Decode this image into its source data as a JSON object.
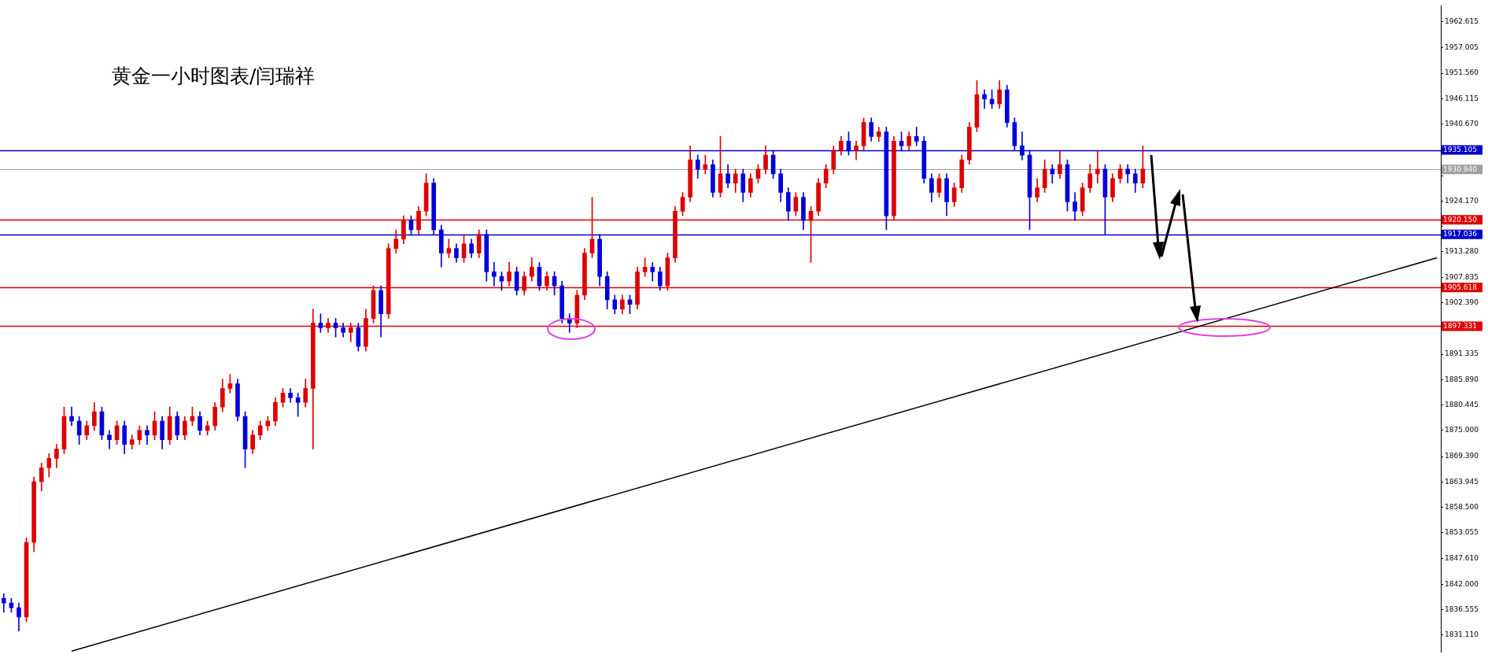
{
  "chart_data": {
    "type": "candlestick",
    "title": "黄金一小时图表/闫瑞祥",
    "categories": [
      null,
      null,
      null,
      null,
      null,
      null,
      null,
      null,
      null,
      null,
      null,
      null,
      null,
      null,
      null,
      null,
      null,
      null,
      null,
      null,
      null,
      null,
      null,
      null,
      null,
      null,
      null,
      null,
      null,
      null,
      null,
      null,
      null,
      null,
      null,
      null,
      null,
      null,
      null,
      null,
      null,
      null,
      null,
      null,
      null,
      null,
      null,
      null,
      null,
      null,
      null,
      null,
      null,
      null,
      null,
      null,
      null,
      null,
      null,
      null,
      null,
      null,
      null,
      null,
      null,
      null,
      null,
      null,
      null,
      null,
      null,
      null,
      null,
      null,
      null,
      null,
      null,
      null,
      null,
      null,
      null,
      null,
      null,
      null,
      null,
      null,
      null,
      null,
      null,
      null,
      null,
      null,
      null,
      null,
      null,
      null,
      null,
      null,
      null,
      null,
      null,
      null,
      null,
      null,
      null,
      null,
      null,
      null,
      null,
      null,
      null,
      null,
      null,
      null,
      null,
      null,
      null,
      null,
      null,
      null,
      null,
      null,
      null,
      null,
      null,
      null,
      null,
      null,
      null,
      null,
      null,
      null,
      null,
      null,
      null,
      null,
      null,
      null,
      null,
      null,
      null,
      null,
      null,
      null,
      null,
      null,
      null,
      null,
      null,
      null,
      null,
      null,
      null,
      null,
      null,
      null,
      null,
      null,
      null,
      null,
      null,
      null,
      null,
      null,
      null,
      null,
      null,
      null,
      null,
      null,
      null,
      null,
      null,
      null,
      null,
      null,
      null,
      null,
      null,
      null,
      null,
      null,
      null,
      null,
      null,
      null,
      null,
      null,
      null,
      null,
      null
    ],
    "ohlc": [
      [
        1839,
        1840,
        1836,
        1838
      ],
      [
        1838,
        1839,
        1836,
        1837
      ],
      [
        1837,
        1838,
        1832,
        1835
      ],
      [
        1835,
        1852,
        1834,
        1851
      ],
      [
        1851,
        1865,
        1849,
        1864
      ],
      [
        1864,
        1868,
        1862,
        1867
      ],
      [
        1867,
        1870,
        1865,
        1869
      ],
      [
        1869,
        1872,
        1867,
        1871
      ],
      [
        1871,
        1880,
        1870,
        1878
      ],
      [
        1878,
        1880,
        1876,
        1877
      ],
      [
        1877,
        1878,
        1872,
        1874
      ],
      [
        1874,
        1877,
        1873,
        1876
      ],
      [
        1876,
        1881,
        1875,
        1879
      ],
      [
        1879,
        1880,
        1873,
        1874
      ],
      [
        1874,
        1875,
        1871,
        1873
      ],
      [
        1873,
        1877,
        1872,
        1876
      ],
      [
        1876,
        1877,
        1870,
        1872
      ],
      [
        1872,
        1874,
        1871,
        1873
      ],
      [
        1873,
        1876,
        1872,
        1875
      ],
      [
        1875,
        1876,
        1872,
        1874
      ],
      [
        1874,
        1879,
        1873,
        1877
      ],
      [
        1877,
        1878,
        1871,
        1873
      ],
      [
        1873,
        1880,
        1872,
        1878
      ],
      [
        1878,
        1879,
        1873,
        1874
      ],
      [
        1874,
        1878,
        1873,
        1877
      ],
      [
        1877,
        1880,
        1876,
        1878
      ],
      [
        1878,
        1879,
        1874,
        1875
      ],
      [
        1875,
        1877,
        1874,
        1876
      ],
      [
        1876,
        1881,
        1875,
        1880
      ],
      [
        1880,
        1886,
        1879,
        1884
      ],
      [
        1884,
        1887,
        1883,
        1885
      ],
      [
        1885,
        1886,
        1877,
        1878
      ],
      [
        1878,
        1879,
        1867,
        1871
      ],
      [
        1871,
        1875,
        1870,
        1874
      ],
      [
        1874,
        1877,
        1873,
        1876
      ],
      [
        1876,
        1878,
        1875,
        1877
      ],
      [
        1877,
        1882,
        1876,
        1881
      ],
      [
        1881,
        1884,
        1880,
        1883
      ],
      [
        1883,
        1884,
        1881,
        1882
      ],
      [
        1882,
        1883,
        1878,
        1881
      ],
      [
        1881,
        1886,
        1880,
        1884
      ],
      [
        1884,
        1901,
        1871,
        1898
      ],
      [
        1898,
        1900,
        1896,
        1897
      ],
      [
        1897,
        1899,
        1896,
        1898
      ],
      [
        1898,
        1899,
        1895,
        1897
      ],
      [
        1897,
        1898,
        1895,
        1896
      ],
      [
        1896,
        1898,
        1894,
        1897
      ],
      [
        1897,
        1898,
        1892,
        1893
      ],
      [
        1893,
        1901,
        1892,
        1899
      ],
      [
        1899,
        1906,
        1898,
        1905
      ],
      [
        1905,
        1906,
        1895,
        1900
      ],
      [
        1900,
        1915,
        1899,
        1914
      ],
      [
        1914,
        1918,
        1913,
        1916
      ],
      [
        1916,
        1921,
        1915,
        1920
      ],
      [
        1920,
        1921,
        1917,
        1918
      ],
      [
        1918,
        1923,
        1917,
        1922
      ],
      [
        1922,
        1930,
        1921,
        1928
      ],
      [
        1928,
        1929,
        1917,
        1918
      ],
      [
        1918,
        1919,
        1910,
        1913
      ],
      [
        1913,
        1916,
        1912,
        1914
      ],
      [
        1914,
        1915,
        1911,
        1912
      ],
      [
        1912,
        1917,
        1911,
        1915
      ],
      [
        1915,
        1916,
        1912,
        1913
      ],
      [
        1913,
        1918,
        1912,
        1917
      ],
      [
        1917,
        1918,
        1907,
        1909
      ],
      [
        1909,
        1911,
        1906,
        1908
      ],
      [
        1908,
        1909,
        1905,
        1907
      ],
      [
        1907,
        1911,
        1906,
        1909
      ],
      [
        1909,
        1910,
        1904,
        1905
      ],
      [
        1905,
        1909,
        1904,
        1908
      ],
      [
        1908,
        1912,
        1907,
        1910
      ],
      [
        1910,
        1911,
        1905,
        1906
      ],
      [
        1906,
        1909,
        1905,
        1908
      ],
      [
        1908,
        1909,
        1904,
        1906
      ],
      [
        1906,
        1907,
        1898,
        1899
      ],
      [
        1899,
        1900,
        1896,
        1898
      ],
      [
        1898,
        1905,
        1897,
        1904
      ],
      [
        1904,
        1914,
        1903,
        1913
      ],
      [
        1913,
        1925,
        1912,
        1916
      ],
      [
        1916,
        1917,
        1906,
        1908
      ],
      [
        1908,
        1909,
        1901,
        1903
      ],
      [
        1903,
        1904,
        1900,
        1901
      ],
      [
        1901,
        1904,
        1900,
        1903
      ],
      [
        1903,
        1904,
        1900,
        1902
      ],
      [
        1902,
        1910,
        1901,
        1909
      ],
      [
        1909,
        1912,
        1908,
        1910
      ],
      [
        1910,
        1911,
        1907,
        1909
      ],
      [
        1909,
        1910,
        1905,
        1906
      ],
      [
        1906,
        1913,
        1905,
        1912
      ],
      [
        1912,
        1923,
        1911,
        1922
      ],
      [
        1922,
        1926,
        1921,
        1925
      ],
      [
        1925,
        1936,
        1924,
        1933
      ],
      [
        1933,
        1934,
        1929,
        1931
      ],
      [
        1931,
        1934,
        1930,
        1932
      ],
      [
        1932,
        1933,
        1925,
        1926
      ],
      [
        1926,
        1938,
        1925,
        1930
      ],
      [
        1930,
        1932,
        1927,
        1928
      ],
      [
        1928,
        1931,
        1926,
        1930
      ],
      [
        1930,
        1931,
        1924,
        1926
      ],
      [
        1926,
        1930,
        1925,
        1929
      ],
      [
        1929,
        1932,
        1928,
        1931
      ],
      [
        1931,
        1936,
        1930,
        1934
      ],
      [
        1934,
        1935,
        1929,
        1930
      ],
      [
        1930,
        1931,
        1924,
        1926
      ],
      [
        1926,
        1927,
        1920,
        1922
      ],
      [
        1922,
        1926,
        1921,
        1925
      ],
      [
        1925,
        1926,
        1918,
        1920
      ],
      [
        1920,
        1923,
        1911,
        1922
      ],
      [
        1922,
        1929,
        1921,
        1928
      ],
      [
        1928,
        1932,
        1927,
        1931
      ],
      [
        1931,
        1936,
        1930,
        1935
      ],
      [
        1935,
        1938,
        1934,
        1937
      ],
      [
        1937,
        1939,
        1934,
        1935
      ],
      [
        1935,
        1937,
        1933,
        1936
      ],
      [
        1936,
        1942,
        1935,
        1941
      ],
      [
        1941,
        1942,
        1937,
        1938
      ],
      [
        1938,
        1940,
        1937,
        1939
      ],
      [
        1939,
        1940,
        1918,
        1921
      ],
      [
        1921,
        1938,
        1920,
        1937
      ],
      [
        1937,
        1939,
        1935,
        1936
      ],
      [
        1936,
        1939,
        1935,
        1938
      ],
      [
        1938,
        1940,
        1936,
        1937
      ],
      [
        1937,
        1938,
        1928,
        1929
      ],
      [
        1929,
        1930,
        1924,
        1926
      ],
      [
        1926,
        1930,
        1925,
        1929
      ],
      [
        1929,
        1930,
        1921,
        1924
      ],
      [
        1924,
        1928,
        1923,
        1927
      ],
      [
        1927,
        1934,
        1926,
        1933
      ],
      [
        1933,
        1941,
        1932,
        1940
      ],
      [
        1940,
        1950,
        1939,
        1947
      ],
      [
        1947,
        1948,
        1944,
        1946
      ],
      [
        1946,
        1948,
        1944,
        1945
      ],
      [
        1945,
        1950,
        1944,
        1948
      ],
      [
        1948,
        1949,
        1940,
        1941
      ],
      [
        1941,
        1942,
        1935,
        1936
      ],
      [
        1936,
        1939,
        1933,
        1934
      ],
      [
        1934,
        1935,
        1918,
        1925
      ],
      [
        1925,
        1929,
        1924,
        1927
      ],
      [
        1927,
        1933,
        1926,
        1931
      ],
      [
        1931,
        1932,
        1928,
        1930
      ],
      [
        1930,
        1935,
        1929,
        1932
      ],
      [
        1932,
        1933,
        1922,
        1924
      ],
      [
        1924,
        1926,
        1920,
        1922
      ],
      [
        1922,
        1928,
        1921,
        1927
      ],
      [
        1927,
        1932,
        1926,
        1930
      ],
      [
        1930,
        1935,
        1928,
        1931
      ],
      [
        1931,
        1932,
        1917,
        1925
      ],
      [
        1925,
        1930,
        1924,
        1929
      ],
      [
        1929,
        1932,
        1928,
        1931
      ],
      [
        1931,
        1932,
        1928,
        1930
      ],
      [
        1930,
        1931,
        1926,
        1928
      ],
      [
        1928,
        1936,
        1927,
        1931
      ],
      null,
      null,
      null,
      null,
      null,
      null,
      null,
      null,
      null,
      null,
      null,
      null,
      null,
      null,
      null,
      null,
      null,
      null,
      null,
      null,
      null,
      null,
      null,
      null,
      null,
      null,
      null,
      null,
      null,
      null,
      null,
      null,
      null,
      null,
      null,
      null,
      null,
      null,
      null
    ],
    "colors": [
      "#0000dd",
      "#0000dd",
      "#0000dd",
      "#dd0000",
      "#dd0000",
      "#dd0000",
      "#dd0000",
      "#dd0000",
      "#dd0000",
      "#0000dd",
      "#0000dd",
      "#dd0000",
      "#dd0000",
      "#0000dd",
      "#0000dd",
      "#dd0000",
      "#0000dd",
      "#dd0000",
      "#dd0000",
      "#0000dd",
      "#dd0000",
      "#0000dd",
      "#dd0000",
      "#0000dd",
      "#dd0000",
      "#dd0000",
      "#0000dd",
      "#dd0000",
      "#dd0000",
      "#dd0000",
      "#dd0000",
      "#0000dd",
      "#0000dd",
      "#dd0000",
      "#dd0000",
      "#dd0000",
      "#dd0000",
      "#dd0000",
      "#0000dd",
      "#0000dd",
      "#dd0000",
      "#dd0000",
      "#0000dd",
      "#dd0000",
      "#0000dd",
      "#0000dd",
      "#dd0000",
      "#0000dd",
      "#dd0000",
      "#dd0000",
      "#0000dd",
      "#dd0000",
      "#dd0000",
      "#dd0000",
      "#0000dd",
      "#dd0000",
      "#dd0000",
      "#0000dd",
      "#0000dd",
      "#dd0000",
      "#0000dd",
      "#dd0000",
      "#0000dd",
      "#dd0000",
      "#0000dd",
      "#0000dd",
      "#0000dd",
      "#dd0000",
      "#0000dd",
      "#dd0000",
      "#dd0000",
      "#0000dd",
      "#dd0000",
      "#0000dd",
      "#0000dd",
      "#0000dd",
      "#dd0000",
      "#dd0000",
      "#dd0000",
      "#0000dd",
      "#0000dd",
      "#0000dd",
      "#dd0000",
      "#0000dd",
      "#dd0000",
      "#dd0000",
      "#0000dd",
      "#0000dd",
      "#dd0000",
      "#dd0000",
      "#dd0000",
      "#dd0000",
      "#0000dd",
      "#dd0000",
      "#0000dd",
      "#dd0000",
      "#0000dd",
      "#dd0000",
      "#0000dd",
      "#dd0000",
      "#dd0000",
      "#dd0000",
      "#0000dd",
      "#0000dd",
      "#0000dd",
      "#dd0000",
      "#0000dd",
      "#dd0000",
      "#dd0000",
      "#dd0000",
      "#dd0000",
      "#dd0000",
      "#0000dd",
      "#dd0000",
      "#dd0000",
      "#0000dd",
      "#dd0000",
      "#0000dd",
      "#dd0000",
      "#0000dd",
      "#dd0000",
      "#0000dd",
      "#0000dd",
      "#0000dd",
      "#dd0000",
      "#0000dd",
      "#dd0000",
      "#dd0000",
      "#dd0000",
      "#dd0000",
      "#0000dd",
      "#0000dd",
      "#dd0000",
      "#0000dd",
      "#0000dd",
      "#0000dd",
      "#0000dd",
      "#dd0000",
      "#dd0000",
      "#0000dd",
      "#dd0000",
      "#0000dd",
      "#0000dd",
      "#dd0000",
      "#dd0000",
      "#dd0000",
      "#0000dd",
      "#dd0000",
      "#dd0000",
      "#0000dd",
      "#0000dd",
      "#dd0000",
      null,
      null,
      null,
      null,
      null,
      null,
      null,
      null,
      null,
      null,
      null,
      null,
      null,
      null,
      null,
      null,
      null,
      null,
      null,
      null,
      null,
      null,
      null,
      null,
      null,
      null,
      null,
      null,
      null,
      null,
      null,
      null,
      null,
      null,
      null,
      null,
      null,
      null,
      null
    ],
    "series": [
      {
        "type": "line",
        "color": "#000000",
        "values": [
          null,
          null,
          null,
          null,
          null,
          null,
          null,
          null,
          null,
          1827.7,
          null,
          null,
          null,
          null,
          null,
          null,
          null,
          null,
          null,
          null,
          null,
          null,
          null,
          null,
          null,
          null,
          null,
          null,
          null,
          null,
          null,
          null,
          null,
          null,
          null,
          null,
          null,
          null,
          null,
          null,
          null,
          null,
          null,
          null,
          null,
          null,
          null,
          null,
          null,
          null,
          null,
          null,
          null,
          null,
          null,
          null,
          null,
          null,
          null,
          null,
          null,
          null,
          null,
          null,
          null,
          null,
          null,
          null,
          null,
          null,
          null,
          null,
          null,
          null,
          null,
          null,
          null,
          null,
          null,
          null,
          null,
          null,
          null,
          null,
          null,
          null,
          null,
          null,
          null,
          null,
          null,
          null,
          null,
          null,
          null,
          null,
          null,
          null,
          null,
          null,
          null,
          null,
          null,
          null,
          null,
          null,
          null,
          null,
          null,
          null,
          null,
          null,
          null,
          null,
          null,
          null,
          null,
          null,
          null,
          null,
          null,
          null,
          null,
          null,
          null,
          null,
          null,
          null,
          null,
          null,
          null,
          null,
          null,
          null,
          null,
          null,
          null,
          null,
          null,
          null,
          null,
          null,
          null,
          null,
          null,
          null,
          null,
          null,
          null,
          null,
          null,
          null,
          null,
          null,
          null,
          null,
          null,
          null,
          null,
          null,
          null,
          null,
          null,
          null,
          null,
          null,
          null,
          null,
          null,
          null,
          null,
          null,
          null,
          null,
          null,
          null,
          null,
          null,
          null,
          null,
          null,
          null,
          null,
          null,
          null,
          null,
          null,
          null,
          null,
          null,
          1912.0
        ]
      }
    ],
    "ylim": [
      1827.46,
      1966.01
    ],
    "yticks": [
      {
        "value": 1962.615,
        "label": "1962.615"
      },
      {
        "value": 1957.005,
        "label": "1957.005"
      },
      {
        "value": 1951.56,
        "label": "1951.560"
      },
      {
        "value": 1946.115,
        "label": "1946.115"
      },
      {
        "value": 1940.67,
        "label": "1940.670"
      },
      {
        "value": 1929.615,
        "label": null
      },
      {
        "value": 1924.17,
        "label": "1924.170"
      },
      {
        "value": 1918.725,
        "label": null
      },
      {
        "value": 1913.28,
        "label": "1913.280"
      },
      {
        "value": 1907.835,
        "label": "1907.835"
      },
      {
        "value": 1902.39,
        "label": "1902.390"
      },
      {
        "value": 1891.335,
        "label": "1891.335"
      },
      {
        "value": 1885.89,
        "label": "1885.890"
      },
      {
        "value": 1880.445,
        "label": "1880.445"
      },
      {
        "value": 1875,
        "label": "1875.000"
      },
      {
        "value": 1869.39,
        "label": "1869.390"
      },
      {
        "value": 1863.945,
        "label": "1863.945"
      },
      {
        "value": 1858.5,
        "label": "1858.500"
      },
      {
        "value": 1853.055,
        "label": "1853.055"
      },
      {
        "value": 1847.61,
        "label": "1847.610"
      },
      {
        "value": 1842,
        "label": "1842.000"
      },
      {
        "value": 1836.555,
        "label": "1836.555"
      },
      {
        "value": 1831.11,
        "label": "1831.110"
      }
    ],
    "ref_lines": [
      {
        "axis": "y",
        "value": 1935.105,
        "label": "1935.105",
        "color": "#0000cc"
      },
      {
        "axis": "y",
        "value": 1930.94,
        "label": "1930.940",
        "color": "#a0a0a0"
      },
      {
        "axis": "y",
        "value": 1920.15,
        "label": "1920.150",
        "color": "#dd0000"
      },
      {
        "axis": "y",
        "value": 1917.036,
        "label": "1917.036",
        "color": "#0000cc"
      },
      {
        "axis": "y",
        "value": 1905.618,
        "label": "1905.618",
        "color": "#dd0000"
      },
      {
        "axis": "y",
        "value": 1897.331,
        "label": "1897.331",
        "color": "#dd0000"
      }
    ],
    "grid": false,
    "legend": false
  }
}
